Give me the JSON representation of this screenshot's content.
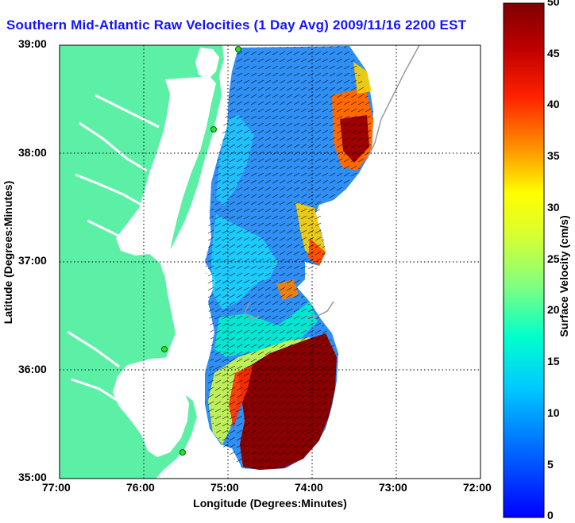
{
  "title": "Southern Mid-Atlantic Raw Velocities (1 Day Avg) 2009/11/16 2200 EST",
  "xlabel": "Longitude (Degrees:Minutes)",
  "ylabel": "Latitude (Degrees:Minutes)",
  "x_ticks": [
    "77:00",
    "76:00",
    "75:00",
    "74:00",
    "73:00",
    "72:00"
  ],
  "y_ticks": [
    "39:00",
    "38:00",
    "37:00",
    "36:00",
    "35:00"
  ],
  "colorbar": {
    "label": "Surface Velocity (cm/s)",
    "ticks": [
      "0",
      "5",
      "10",
      "15",
      "20",
      "25",
      "30",
      "35",
      "40",
      "45",
      "50"
    ],
    "min": 0,
    "max": 50
  },
  "colors": {
    "land": "#5cf0a6",
    "title": "#1414ff"
  },
  "chart_data": {
    "type": "heatmap",
    "xlim": [
      "77:00",
      "72:00"
    ],
    "ylim": [
      "35:00",
      "39:00"
    ],
    "grid": true,
    "colormap": "jet",
    "value_range": [
      0,
      50
    ]
  }
}
